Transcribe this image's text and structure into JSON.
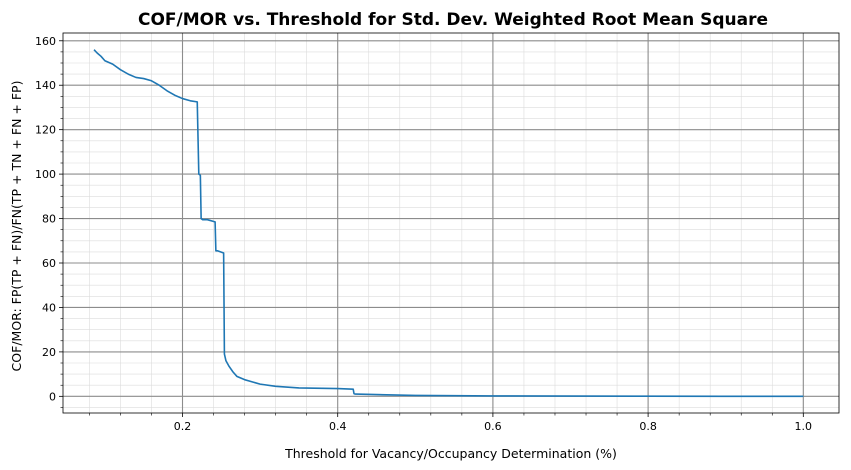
{
  "chart_data": {
    "type": "line",
    "title": "COF/MOR vs. Threshold for Std. Dev. Weighted Root Mean Square",
    "xlabel": "Threshold for Vacancy/Occupancy Determination (%)",
    "ylabel": "COF/MOR: FP(TP + FN)/FN(TP + TN + FN + FP)",
    "xlim": [
      0.046,
      1.046
    ],
    "ylim": [
      -7.5,
      163.5
    ],
    "x_ticks": [
      {
        "value": 0.2,
        "label": "0.2"
      },
      {
        "value": 0.4,
        "label": "0.4"
      },
      {
        "value": 0.6,
        "label": "0.6"
      },
      {
        "value": 0.8,
        "label": "0.8"
      },
      {
        "value": 1.0,
        "label": "1.0"
      }
    ],
    "y_ticks": [
      {
        "value": 0,
        "label": "0"
      },
      {
        "value": 20,
        "label": "20"
      },
      {
        "value": 40,
        "label": "40"
      },
      {
        "value": 60,
        "label": "60"
      },
      {
        "value": 80,
        "label": "80"
      },
      {
        "value": 100,
        "label": "100"
      },
      {
        "value": 120,
        "label": "120"
      },
      {
        "value": 140,
        "label": "140"
      },
      {
        "value": 160,
        "label": "160"
      }
    ],
    "grid": true,
    "legend": "none",
    "series": [
      {
        "color": "#1f77b4",
        "x": [
          0.086,
          0.09,
          0.095,
          0.1,
          0.11,
          0.12,
          0.13,
          0.14,
          0.15,
          0.16,
          0.17,
          0.18,
          0.19,
          0.2,
          0.21,
          0.219,
          0.221,
          0.223,
          0.224,
          0.226,
          0.232,
          0.242,
          0.243,
          0.245,
          0.253,
          0.254,
          0.256,
          0.26,
          0.265,
          0.27,
          0.28,
          0.3,
          0.32,
          0.35,
          0.4,
          0.42,
          0.421,
          0.423,
          0.5,
          0.6,
          0.7,
          0.8,
          0.9,
          1.0
        ],
        "y": [
          156,
          154.5,
          153,
          151,
          149.5,
          147,
          145,
          143.5,
          143,
          142,
          140,
          137.5,
          135.5,
          134,
          133,
          132.5,
          100,
          99.5,
          80,
          79.5,
          79.5,
          78.5,
          65.5,
          65.5,
          64.5,
          19,
          16,
          13.5,
          11,
          9,
          7.5,
          5.5,
          4.5,
          3.8,
          3.5,
          3.2,
          1.2,
          1.0,
          0.4,
          0.2,
          0.1,
          0.05,
          0.02,
          0
        ]
      }
    ]
  }
}
